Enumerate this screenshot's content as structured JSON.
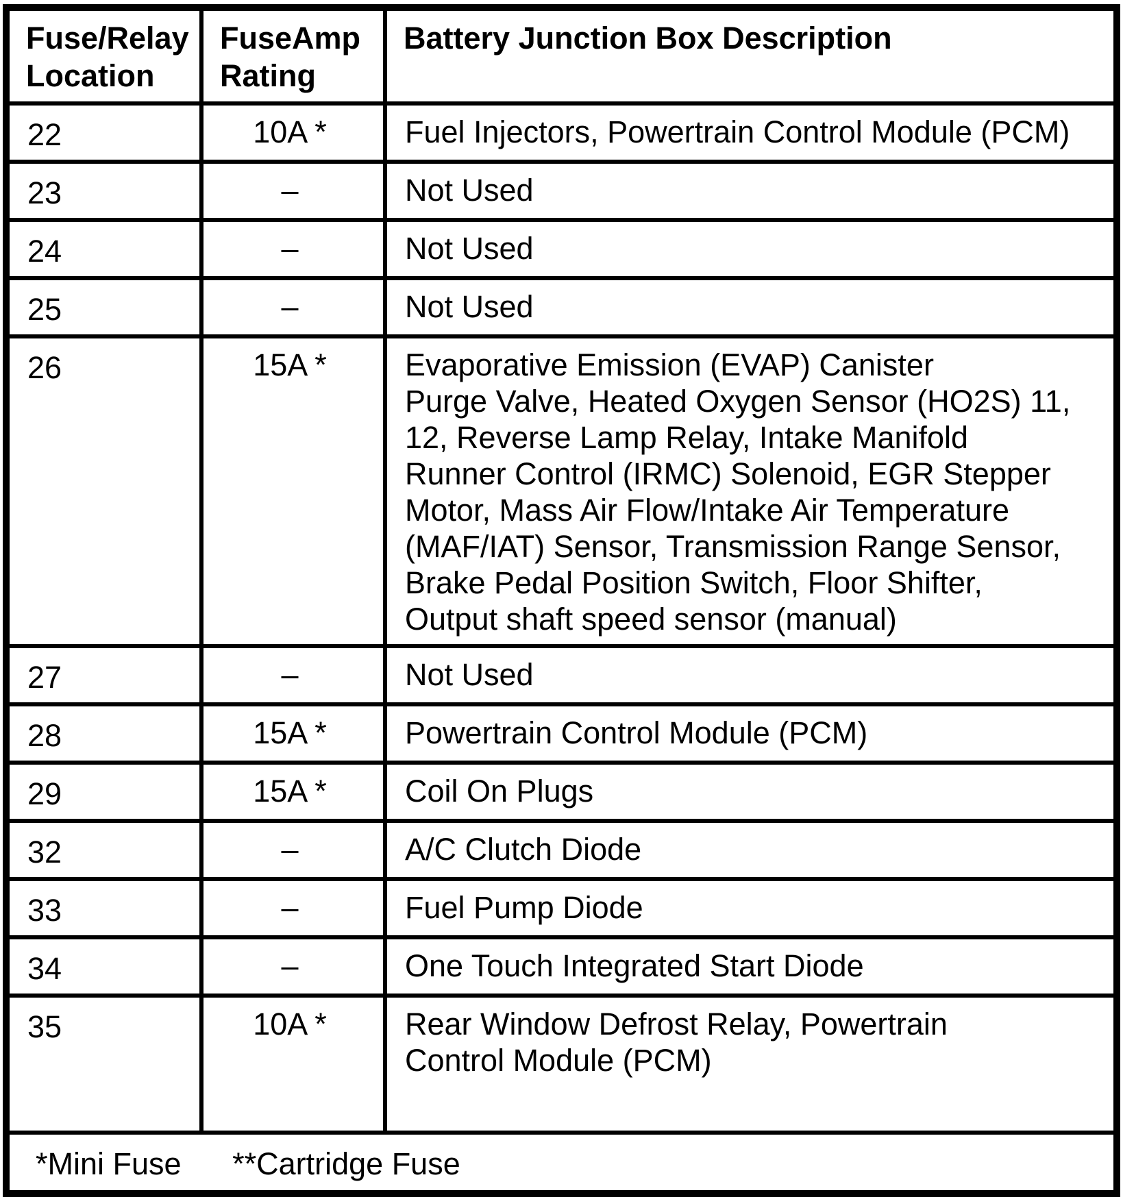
{
  "page": {
    "background_color": "#ffffff",
    "text_color": "#000000",
    "border_color": "#000000"
  },
  "table": {
    "columns": [
      "Fuse/Relay Location",
      "FuseAmp Rating",
      "Battery Junction Box Description"
    ],
    "rows": [
      {
        "location": "22",
        "rating": "10A *",
        "description": "Fuel Injectors, Powertrain Control Module (PCM)"
      },
      {
        "location": "23",
        "rating": "–",
        "description": "Not Used"
      },
      {
        "location": "24",
        "rating": "–",
        "description": "Not Used"
      },
      {
        "location": "25",
        "rating": "–",
        "description": "Not Used"
      },
      {
        "location": "26",
        "rating": "15A *",
        "description": "Evaporative Emission (EVAP) Canister\nPurge Valve, Heated Oxygen Sensor (HO2S) 11,\n12, Reverse Lamp Relay, Intake Manifold\nRunner Control (IRMC) Solenoid, EGR Stepper\nMotor, Mass Air Flow/Intake Air Temperature\n(MAF/IAT) Sensor, Transmission Range Sensor,\nBrake Pedal Position Switch, Floor Shifter,\nOutput shaft speed sensor (manual)"
      },
      {
        "location": "27",
        "rating": "–",
        "description": "Not Used"
      },
      {
        "location": "28",
        "rating": "15A *",
        "description": "Powertrain Control Module (PCM)"
      },
      {
        "location": "29",
        "rating": "15A *",
        "description": "Coil On Plugs"
      },
      {
        "location": "32",
        "rating": "–",
        "description": "A/C Clutch Diode"
      },
      {
        "location": "33",
        "rating": "–",
        "description": "Fuel Pump Diode"
      },
      {
        "location": "34",
        "rating": "–",
        "description": "One Touch Integrated Start Diode"
      },
      {
        "location": "35",
        "rating": "10A *",
        "description": "Rear Window Defrost Relay, Powertrain\nControl Module (PCM)"
      }
    ],
    "footnotes": [
      "*Mini Fuse",
      "**Cartridge Fuse"
    ]
  }
}
